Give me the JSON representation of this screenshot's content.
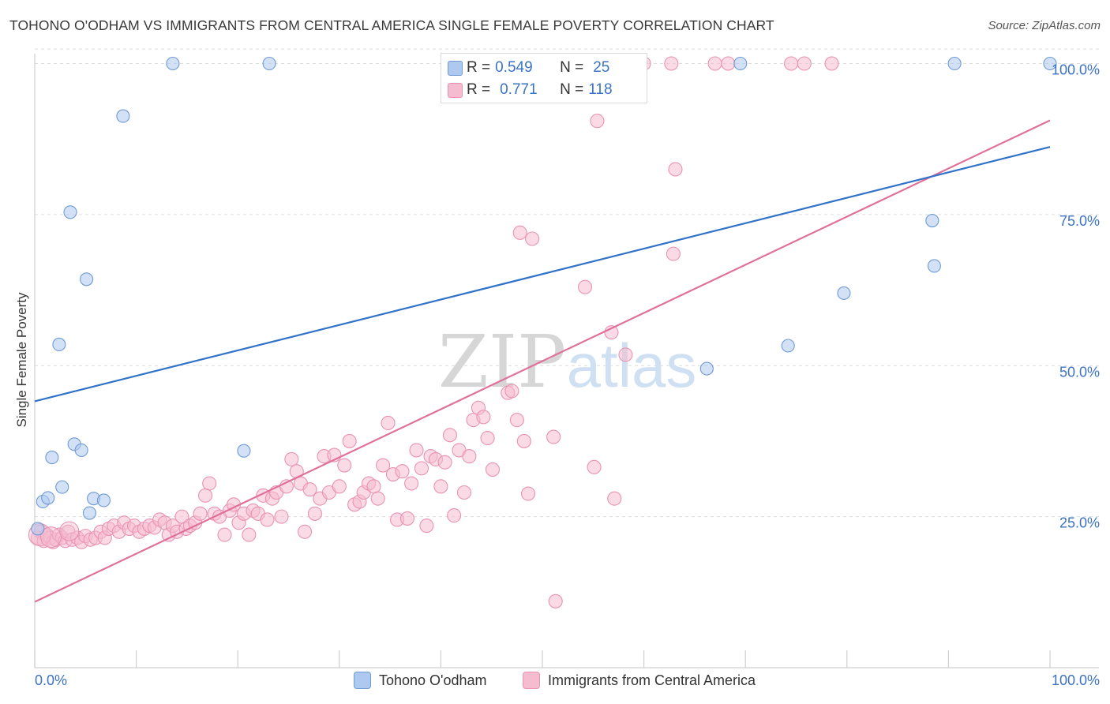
{
  "title": "TOHONO O'ODHAM VS IMMIGRANTS FROM CENTRAL AMERICA SINGLE FEMALE POVERTY CORRELATION CHART",
  "source": "Source: ZipAtlas.com",
  "watermark": "ZIPatlas",
  "legend_top": [
    {
      "r_label": "R =",
      "r_value": "0.549",
      "n_label": "N =",
      "n_value": "25"
    },
    {
      "r_label": "R =",
      "r_value": "0.771",
      "n_label": "N =",
      "n_value": "118"
    }
  ],
  "colors": {
    "blue_fill": "#aec9ef",
    "blue_stroke": "#6f9ad6",
    "blue_line": "#2f72c9",
    "pink_fill": "#f5bcd0",
    "pink_stroke": "#e993b2",
    "pink_line": "#e06f99",
    "axis_text": "#3b73c4",
    "grid": "#dcdcdc"
  },
  "chart_data": {
    "type": "scatter",
    "title": "TOHONO O'ODHAM VS IMMIGRANTS FROM CENTRAL AMERICA SINGLE FEMALE POVERTY CORRELATION CHART",
    "xlabel": "",
    "ylabel": "Single Female Poverty",
    "xlim": [
      0,
      100
    ],
    "ylim": [
      0,
      103
    ],
    "x_tick_labels": [
      "0.0%",
      "100.0%"
    ],
    "y_tick_labels": [
      "25.0%",
      "50.0%",
      "75.0%",
      "100.0%"
    ],
    "y_ticks": [
      25,
      50,
      75,
      100
    ],
    "grid": true,
    "legend_placement": "bottom",
    "series": [
      {
        "name": "Tohono O'odham",
        "r": 0.549,
        "n": 25,
        "trend": [
          [
            0,
            44.1
          ],
          [
            100,
            86.2
          ]
        ],
        "points": [
          [
            0.3,
            23.0
          ],
          [
            0.8,
            27.5
          ],
          [
            1.3,
            28.1
          ],
          [
            1.7,
            34.8
          ],
          [
            2.4,
            53.5
          ],
          [
            2.7,
            29.9
          ],
          [
            3.5,
            75.4
          ],
          [
            3.9,
            37.0
          ],
          [
            4.6,
            36.0
          ],
          [
            5.1,
            64.3
          ],
          [
            5.4,
            25.6
          ],
          [
            5.8,
            28.0
          ],
          [
            6.8,
            27.7
          ],
          [
            8.7,
            91.3
          ],
          [
            13.6,
            100
          ],
          [
            20.6,
            35.9
          ],
          [
            23.1,
            100
          ],
          [
            66.2,
            49.5
          ],
          [
            69.5,
            100
          ],
          [
            74.2,
            53.3
          ],
          [
            79.7,
            62.0
          ],
          [
            88.4,
            74.0
          ],
          [
            88.6,
            66.5
          ],
          [
            90.6,
            100
          ],
          [
            100,
            100
          ]
        ]
      },
      {
        "name": "Immigrants from Central America",
        "r": 0.771,
        "n": 118,
        "trend": [
          [
            0,
            10.9
          ],
          [
            100,
            90.6
          ]
        ],
        "points": [
          [
            0.3,
            21.5
          ],
          [
            0.6,
            22.5
          ],
          [
            0.9,
            21.0
          ],
          [
            1.2,
            22.0
          ],
          [
            1.5,
            21.5
          ],
          [
            1.8,
            20.8
          ],
          [
            2.1,
            21.2
          ],
          [
            2.4,
            22.0
          ],
          [
            2.7,
            21.5
          ],
          [
            3.0,
            21.0
          ],
          [
            3.3,
            22.5
          ],
          [
            3.7,
            21.2
          ],
          [
            4.2,
            21.5
          ],
          [
            4.6,
            20.8
          ],
          [
            5.0,
            21.8
          ],
          [
            5.5,
            21.2
          ],
          [
            6.0,
            21.5
          ],
          [
            6.5,
            22.5
          ],
          [
            6.9,
            21.5
          ],
          [
            7.3,
            23.0
          ],
          [
            7.8,
            23.5
          ],
          [
            8.3,
            22.5
          ],
          [
            8.8,
            24.0
          ],
          [
            9.3,
            23.0
          ],
          [
            9.8,
            23.5
          ],
          [
            10.3,
            22.5
          ],
          [
            10.8,
            23.0
          ],
          [
            11.3,
            23.5
          ],
          [
            11.8,
            23.2
          ],
          [
            12.3,
            24.5
          ],
          [
            12.8,
            24.0
          ],
          [
            13.2,
            22.0
          ],
          [
            13.6,
            23.5
          ],
          [
            14.0,
            22.5
          ],
          [
            14.5,
            25.0
          ],
          [
            14.9,
            23.0
          ],
          [
            15.3,
            23.5
          ],
          [
            15.8,
            24.0
          ],
          [
            16.3,
            25.5
          ],
          [
            16.8,
            28.5
          ],
          [
            17.2,
            30.5
          ],
          [
            17.7,
            25.5
          ],
          [
            18.2,
            25.0
          ],
          [
            18.7,
            22.0
          ],
          [
            19.2,
            26.0
          ],
          [
            19.6,
            27.0
          ],
          [
            20.1,
            24.0
          ],
          [
            20.6,
            25.5
          ],
          [
            21.1,
            22.0
          ],
          [
            21.5,
            26.0
          ],
          [
            22.0,
            25.5
          ],
          [
            22.5,
            28.5
          ],
          [
            22.9,
            24.5
          ],
          [
            23.4,
            28.0
          ],
          [
            23.8,
            29.0
          ],
          [
            24.3,
            25.0
          ],
          [
            24.8,
            30.0
          ],
          [
            25.3,
            34.5
          ],
          [
            25.8,
            32.5
          ],
          [
            26.2,
            30.5
          ],
          [
            26.6,
            22.5
          ],
          [
            27.1,
            29.5
          ],
          [
            27.6,
            25.5
          ],
          [
            28.1,
            28.0
          ],
          [
            28.5,
            35.0
          ],
          [
            29.0,
            29.0
          ],
          [
            29.5,
            35.2
          ],
          [
            30.0,
            30.0
          ],
          [
            30.5,
            33.5
          ],
          [
            31.0,
            37.5
          ],
          [
            31.5,
            27.0
          ],
          [
            32.0,
            27.5
          ],
          [
            32.4,
            29.0
          ],
          [
            32.9,
            30.5
          ],
          [
            33.4,
            30.0
          ],
          [
            33.8,
            28.0
          ],
          [
            34.3,
            33.5
          ],
          [
            34.8,
            40.5
          ],
          [
            35.3,
            32.0
          ],
          [
            35.7,
            24.5
          ],
          [
            36.2,
            32.5
          ],
          [
            36.7,
            24.7
          ],
          [
            37.1,
            30.5
          ],
          [
            37.6,
            36.0
          ],
          [
            38.1,
            33.0
          ],
          [
            38.6,
            23.5
          ],
          [
            39.0,
            35.0
          ],
          [
            39.5,
            34.5
          ],
          [
            40.0,
            30.0
          ],
          [
            40.4,
            34.0
          ],
          [
            40.9,
            38.5
          ],
          [
            41.3,
            25.2
          ],
          [
            41.8,
            36.0
          ],
          [
            42.3,
            29.0
          ],
          [
            42.8,
            35.0
          ],
          [
            43.2,
            41.0
          ],
          [
            43.7,
            43.0
          ],
          [
            44.2,
            41.5
          ],
          [
            44.6,
            38.0
          ],
          [
            45.1,
            32.8
          ],
          [
            46.6,
            45.5
          ],
          [
            47.0,
            45.8
          ],
          [
            47.5,
            41.0
          ],
          [
            47.8,
            72.0
          ],
          [
            48.2,
            37.5
          ],
          [
            48.6,
            28.8
          ],
          [
            49.0,
            71.0
          ],
          [
            51.1,
            38.2
          ],
          [
            51.3,
            11.0
          ],
          [
            54.2,
            63.0
          ],
          [
            55.1,
            33.2
          ],
          [
            55.4,
            90.5
          ],
          [
            56.8,
            55.5
          ],
          [
            57.1,
            28.0
          ],
          [
            58.2,
            51.8
          ],
          [
            60.0,
            100
          ],
          [
            62.7,
            100
          ],
          [
            62.9,
            68.5
          ],
          [
            63.1,
            82.5
          ],
          [
            67.0,
            100
          ],
          [
            68.3,
            100
          ],
          [
            74.5,
            100
          ],
          [
            75.8,
            100
          ],
          [
            78.5,
            100
          ]
        ]
      }
    ]
  },
  "bottom_legend": [
    "Tohono O'odham",
    "Immigrants from Central America"
  ]
}
